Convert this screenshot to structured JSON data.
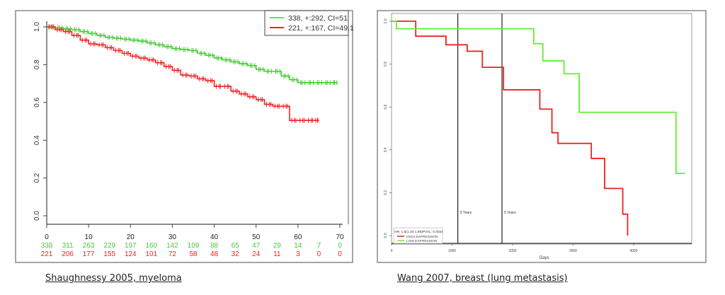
{
  "chart_data": [
    {
      "type": "line",
      "subtype": "kaplan-meier",
      "caption": "Shaughnessy 2005, myeloma",
      "xlabel": "",
      "ylabel": "",
      "xlim": [
        0,
        70
      ],
      "ylim": [
        0,
        1.0
      ],
      "x_ticks": [
        "0",
        "10",
        "20",
        "30",
        "40",
        "50",
        "60",
        "70"
      ],
      "x_tick_values": [
        0,
        10,
        20,
        30,
        40,
        50,
        60,
        70
      ],
      "y_ticks": [
        "0.0",
        "0.2",
        "0.4",
        "0.6",
        "0.8",
        "1.0"
      ],
      "y_tick_values": [
        0,
        0.2,
        0.4,
        0.6,
        0.8,
        1.0
      ],
      "legend_position": "top-right",
      "series": [
        {
          "name": "338, +:292, CI=51",
          "color": "#44cc33",
          "x": [
            0,
            2,
            4,
            6,
            8,
            10,
            12,
            14,
            16,
            18,
            20,
            22,
            24,
            26,
            28,
            30,
            32,
            34,
            36,
            38,
            40,
            42,
            44,
            46,
            48,
            50,
            52,
            54,
            56,
            58,
            60,
            62,
            64,
            66,
            68,
            69.5
          ],
          "y": [
            1.0,
            0.995,
            0.99,
            0.985,
            0.975,
            0.965,
            0.955,
            0.945,
            0.94,
            0.935,
            0.93,
            0.925,
            0.915,
            0.905,
            0.895,
            0.885,
            0.88,
            0.875,
            0.86,
            0.85,
            0.835,
            0.825,
            0.815,
            0.805,
            0.795,
            0.775,
            0.765,
            0.765,
            0.74,
            0.72,
            0.705,
            0.705,
            0.705,
            0.705,
            0.705,
            0.705
          ]
        },
        {
          "name": "221, +:167, CI=49.1",
          "color": "#ee2222",
          "x": [
            0,
            2,
            4,
            6,
            8,
            10,
            12,
            14,
            16,
            18,
            20,
            22,
            24,
            26,
            28,
            30,
            32,
            34,
            36,
            38,
            40,
            42,
            44,
            46,
            48,
            50,
            52,
            54,
            56,
            58,
            60,
            62,
            64,
            65
          ],
          "y": [
            1.0,
            0.985,
            0.975,
            0.955,
            0.93,
            0.91,
            0.905,
            0.89,
            0.875,
            0.86,
            0.845,
            0.835,
            0.825,
            0.81,
            0.79,
            0.77,
            0.745,
            0.74,
            0.725,
            0.715,
            0.685,
            0.685,
            0.66,
            0.645,
            0.63,
            0.615,
            0.59,
            0.58,
            0.58,
            0.505,
            0.505,
            0.505,
            0.505,
            0.505
          ]
        }
      ],
      "risk_table": {
        "x": [
          0,
          5,
          10,
          15,
          20,
          25,
          30,
          35,
          40,
          45,
          50,
          55,
          60,
          65,
          70
        ],
        "rows": [
          {
            "color": "#44cc33",
            "values": [
              "338",
              "311",
              "263",
              "229",
              "197",
              "160",
              "142",
              "109",
              "88",
              "65",
              "47",
              "29",
              "14",
              "7",
              "0"
            ]
          },
          {
            "color": "#ee2222",
            "values": [
              "221",
              "206",
              "177",
              "155",
              "124",
              "101",
              "72",
              "58",
              "48",
              "32",
              "24",
              "11",
              "3",
              "0",
              "0"
            ]
          }
        ]
      }
    },
    {
      "type": "line",
      "subtype": "kaplan-meier",
      "caption": "Wang 2007, breast (lung metastasis)",
      "xlabel": "Days",
      "ylabel": "",
      "xlim": [
        0,
        5000
      ],
      "ylim": [
        0,
        1.0
      ],
      "x_ticks": [
        "0",
        "1000",
        "2000",
        "3000",
        "4000"
      ],
      "x_tick_values": [
        0,
        1000,
        2000,
        3000,
        4000
      ],
      "y_ticks": [
        "0.0",
        "0.2",
        "0.4",
        "0.6",
        "0.8",
        "1.0"
      ],
      "y_tick_values": [
        0,
        0.2,
        0.4,
        0.6,
        0.8,
        1.0
      ],
      "legend_position": "bottom-left",
      "legend_title": "HR: 1.5(1.15-1.96)PVAL: 0.0024",
      "reference_lines": [
        {
          "x": 1095,
          "label": "3 Years"
        },
        {
          "x": 1825,
          "label": "5 Years"
        }
      ],
      "series": [
        {
          "name": "HIGH EXPRESSION",
          "color": "#ee2222",
          "x": [
            0,
            400,
            400,
            900,
            900,
            1250,
            1250,
            1500,
            1500,
            1850,
            1850,
            2450,
            2450,
            2650,
            2650,
            2750,
            2750,
            3300,
            3300,
            3520,
            3520,
            3820,
            3820,
            3900,
            3900
          ],
          "y": [
            1.0,
            1.0,
            0.93,
            0.93,
            0.89,
            0.89,
            0.86,
            0.86,
            0.785,
            0.785,
            0.68,
            0.68,
            0.59,
            0.59,
            0.48,
            0.48,
            0.43,
            0.43,
            0.36,
            0.36,
            0.22,
            0.22,
            0.1,
            0.1,
            0.0
          ]
        },
        {
          "name": "LOW EXPRESSION",
          "color": "#66ee33",
          "x": [
            0,
            80,
            80,
            2350,
            2350,
            2500,
            2500,
            2850,
            2850,
            3100,
            3100,
            4700,
            4700,
            4850
          ],
          "y": [
            1.0,
            1.0,
            0.965,
            0.965,
            0.895,
            0.895,
            0.815,
            0.815,
            0.755,
            0.755,
            0.575,
            0.575,
            0.29,
            0.29
          ]
        }
      ]
    }
  ]
}
